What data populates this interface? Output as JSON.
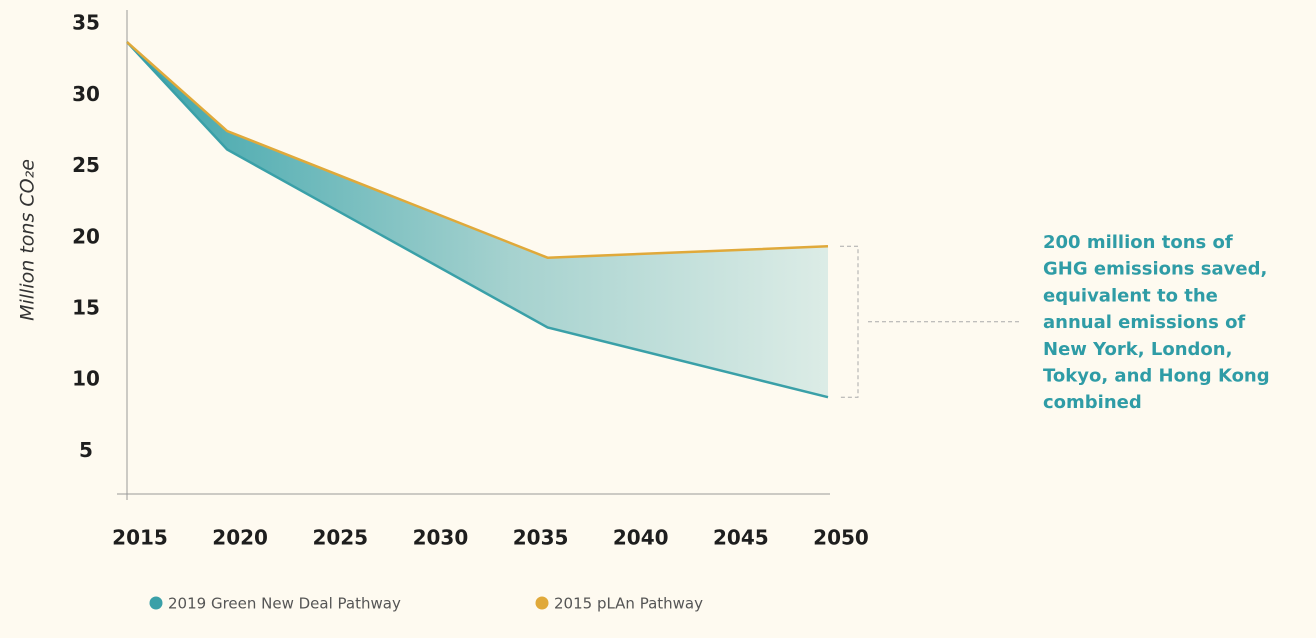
{
  "chart_data": {
    "type": "area_between",
    "y_label": "Million tons CO₂e",
    "x": [
      2015,
      2020,
      2036,
      2050
    ],
    "xlim": [
      2015,
      2050
    ],
    "xticks": [
      2015,
      2020,
      2025,
      2030,
      2035,
      2040,
      2045,
      2050
    ],
    "ylim": [
      2,
      36
    ],
    "yticks": [
      5,
      10,
      15,
      20,
      25,
      30,
      35
    ],
    "grid": false,
    "series": [
      {
        "name": "2019 Green New Deal Pathway",
        "color": "#3aa0a8",
        "values": [
          33.75,
          26.2,
          13.7,
          8.8
        ]
      },
      {
        "name": "2015 pLAn Pathway",
        "color": "#e0a93a",
        "values": [
          33.75,
          27.5,
          18.6,
          19.4
        ]
      }
    ],
    "annotation": [
      "200 million tons of",
      "GHG emissions saved,",
      "equivalent to the",
      "annual emissions of",
      "New York, London,",
      "Tokyo, and Hong Kong",
      "combined"
    ]
  }
}
